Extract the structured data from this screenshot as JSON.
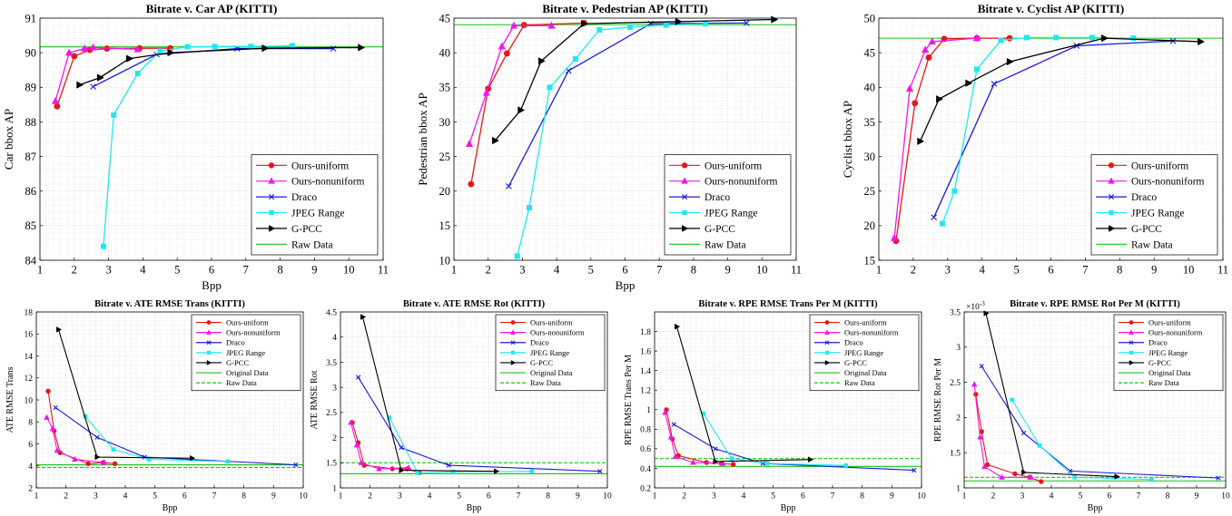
{
  "colors": {
    "ours_uniform": "#e8141a",
    "ours_nonuniform": "#ee17ee",
    "draco": "#1b1bd8",
    "jpeg_range": "#1fe8ee",
    "gpcc": "#000000",
    "green": "#18c418"
  },
  "chart_data": [
    {
      "type": "line",
      "title": "Bitrate v. Car AP (KITTI)",
      "xlabel": "Bpp",
      "ylabel": "Car bbox AP",
      "xlim": [
        1,
        11
      ],
      "ylim": [
        84,
        91
      ],
      "xticks": [
        1,
        2,
        3,
        4,
        5,
        6,
        7,
        8,
        9,
        10,
        11
      ],
      "yticks": [
        84,
        85,
        86,
        87,
        88,
        89,
        90,
        91
      ],
      "grid": true,
      "legend_position": "bottom-right",
      "series": [
        {
          "name": "Ours-uniform",
          "marker": "circle",
          "x": [
            1.5,
            2.0,
            2.45,
            2.95,
            3.9,
            4.8
          ],
          "y": [
            88.45,
            89.9,
            90.08,
            90.12,
            90.13,
            90.13
          ]
        },
        {
          "name": "Ours-nonuniform",
          "marker": "triangle-up",
          "x": [
            1.45,
            1.85,
            2.3,
            2.55,
            3.85
          ],
          "y": [
            88.6,
            90.0,
            90.12,
            90.15,
            90.1
          ]
        },
        {
          "name": "Draco",
          "marker": "x",
          "x": [
            2.55,
            4.4,
            6.75,
            9.55
          ],
          "y": [
            89.02,
            89.95,
            90.12,
            90.12
          ]
        },
        {
          "name": "JPEG Range",
          "marker": "square",
          "x": [
            2.85,
            3.15,
            3.85,
            4.5,
            5.3,
            6.1,
            7.15,
            8.35
          ],
          "y": [
            84.4,
            88.2,
            89.4,
            90.05,
            90.17,
            90.18,
            90.18,
            90.2
          ]
        },
        {
          "name": "G-PCC",
          "marker": "triangle-right",
          "x": [
            2.15,
            2.75,
            3.6,
            4.8,
            7.55,
            10.35
          ],
          "y": [
            89.07,
            89.28,
            89.83,
            90.0,
            90.13,
            90.15
          ]
        }
      ],
      "hlines": [
        {
          "name": "Raw Data",
          "y": 90.17,
          "style": "solid"
        }
      ],
      "legend": [
        "Ours-uniform",
        "Ours-nonuniform",
        "Draco",
        "JPEG Range",
        "G-PCC",
        "Raw Data"
      ]
    },
    {
      "type": "line",
      "title": "Bitrate v. Pedestrian AP (KITTI)",
      "xlabel": "Bpp",
      "ylabel": "Pedestrian bbox AP",
      "xlim": [
        1,
        11
      ],
      "ylim": [
        10,
        45
      ],
      "xticks": [
        1,
        2,
        3,
        4,
        5,
        6,
        7,
        8,
        9,
        10,
        11
      ],
      "yticks": [
        10,
        15,
        20,
        25,
        30,
        35,
        40,
        45
      ],
      "grid": true,
      "legend_position": "bottom-right",
      "series": [
        {
          "name": "Ours-uniform",
          "marker": "circle",
          "x": [
            1.5,
            2.0,
            2.55,
            3.05,
            4.8
          ],
          "y": [
            21.0,
            34.8,
            39.9,
            44.0,
            44.3
          ]
        },
        {
          "name": "Ours-nonuniform",
          "marker": "triangle-up",
          "x": [
            1.45,
            1.95,
            2.4,
            2.75,
            3.85
          ],
          "y": [
            26.8,
            34.2,
            40.9,
            43.9,
            43.9
          ]
        },
        {
          "name": "Draco",
          "marker": "x",
          "x": [
            2.6,
            4.35,
            6.75,
            9.55
          ],
          "y": [
            20.7,
            37.4,
            44.2,
            44.3
          ]
        },
        {
          "name": "JPEG Range",
          "marker": "square",
          "x": [
            2.85,
            3.2,
            3.8,
            4.55,
            5.25,
            6.15,
            7.2,
            8.35
          ],
          "y": [
            10.6,
            17.6,
            35.0,
            39.1,
            43.3,
            43.7,
            44.0,
            44.2
          ]
        },
        {
          "name": "G-PCC",
          "marker": "triangle-right",
          "x": [
            2.2,
            2.95,
            3.55,
            4.8,
            7.55,
            10.35
          ],
          "y": [
            27.3,
            31.7,
            38.8,
            44.2,
            44.5,
            44.8
          ]
        }
      ],
      "hlines": [
        {
          "name": "Raw Data",
          "y": 44.05,
          "style": "solid"
        }
      ],
      "legend": [
        "Ours-uniform",
        "Ours-nonuniform",
        "Draco",
        "JPEG Range",
        "G-PCC",
        "Raw Data"
      ]
    },
    {
      "type": "line",
      "title": "Bitrate v. Cyclist AP (KITTI)",
      "xlabel": "",
      "ylabel": "Cyclist bbox AP",
      "xlim": [
        1,
        11
      ],
      "ylim": [
        15,
        50
      ],
      "xticks": [
        1,
        2,
        3,
        4,
        5,
        6,
        7,
        8,
        9,
        10,
        11
      ],
      "yticks": [
        15,
        20,
        25,
        30,
        35,
        40,
        45,
        50
      ],
      "grid": true,
      "legend_position": "bottom-right",
      "series": [
        {
          "name": "Ours-uniform",
          "marker": "circle",
          "x": [
            1.5,
            2.05,
            2.45,
            2.9,
            3.85,
            4.8
          ],
          "y": [
            17.8,
            37.7,
            44.3,
            47.0,
            47.1,
            47.1
          ]
        },
        {
          "name": "Ours-nonuniform",
          "marker": "triangle-up",
          "x": [
            1.45,
            1.9,
            2.35,
            2.55,
            3.85
          ],
          "y": [
            18.2,
            39.8,
            45.4,
            46.6,
            47.1
          ]
        },
        {
          "name": "Draco",
          "marker": "x",
          "x": [
            2.6,
            4.35,
            6.75,
            9.55
          ],
          "y": [
            21.2,
            40.5,
            46.0,
            46.7
          ]
        },
        {
          "name": "JPEG Range",
          "marker": "square",
          "x": [
            2.85,
            3.2,
            3.85,
            4.55,
            5.3,
            6.15,
            7.2,
            8.4
          ],
          "y": [
            20.3,
            25.0,
            42.6,
            46.8,
            47.2,
            47.2,
            47.2,
            47.1
          ]
        },
        {
          "name": "G-PCC",
          "marker": "triangle-right",
          "x": [
            2.2,
            2.75,
            3.6,
            4.8,
            7.55,
            10.35
          ],
          "y": [
            32.2,
            38.3,
            40.6,
            43.7,
            47.1,
            46.6
          ]
        }
      ],
      "hlines": [
        {
          "name": "Raw Data",
          "y": 47.1,
          "style": "solid"
        }
      ],
      "legend": [
        "Ours-uniform",
        "Ours-nonuniform",
        "Draco",
        "JPEG Range",
        "G-PCC",
        "Raw Data"
      ]
    },
    {
      "type": "line",
      "title": "Bitrate v. ATE RMSE Trans (KITTI)",
      "xlabel": "Bpp",
      "ylabel": "ATE RMSE Trans",
      "xlim": [
        1,
        10
      ],
      "ylim": [
        2,
        18
      ],
      "xticks": [
        1,
        2,
        3,
        4,
        5,
        6,
        7,
        8,
        9,
        10
      ],
      "yticks": [
        2,
        4,
        6,
        8,
        10,
        12,
        14,
        16,
        18
      ],
      "grid": true,
      "legend_position": "top-right",
      "series": [
        {
          "name": "Ours-uniform",
          "marker": "circle",
          "x": [
            1.4,
            1.6,
            1.8,
            2.75,
            3.25,
            3.65
          ],
          "y": [
            10.8,
            7.2,
            5.2,
            4.2,
            4.3,
            4.2
          ]
        },
        {
          "name": "Ours-nonuniform",
          "marker": "triangle-up",
          "x": [
            1.35,
            1.55,
            1.7,
            2.3,
            3.3
          ],
          "y": [
            8.4,
            7.4,
            5.4,
            4.6,
            4.3
          ]
        },
        {
          "name": "Draco",
          "marker": "x",
          "x": [
            1.65,
            3.05,
            4.65,
            9.75
          ],
          "y": [
            9.3,
            6.6,
            4.8,
            4.1
          ]
        },
        {
          "name": "JPEG Range",
          "marker": "square",
          "x": [
            2.65,
            3.6,
            4.8,
            7.45
          ],
          "y": [
            8.5,
            5.5,
            4.6,
            4.4
          ]
        },
        {
          "name": "G-PCC",
          "marker": "triangle-right",
          "x": [
            1.75,
            3.05,
            6.25
          ],
          "y": [
            16.4,
            4.8,
            4.7
          ]
        }
      ],
      "hlines": [
        {
          "name": "Original Data",
          "y": 4.1,
          "style": "solid"
        },
        {
          "name": "Raw Data",
          "y": 3.85,
          "style": "dashed"
        }
      ],
      "legend": [
        "Ours-uniform",
        "Ours-nonuniform",
        "Draco",
        "JPEG Range",
        "G-PCC",
        "Original Data",
        "Raw Data"
      ]
    },
    {
      "type": "line",
      "title": "Bitrate v. ATE RMSE Rot (KITTI)",
      "xlabel": "Bpp",
      "ylabel": "ATE RMSE Rot",
      "xlim": [
        1,
        10
      ],
      "ylim": [
        1,
        4.5
      ],
      "xticks": [
        1,
        2,
        3,
        4,
        5,
        6,
        7,
        8,
        9,
        10
      ],
      "yticks": [
        1,
        1.5,
        2,
        2.5,
        3,
        3.5,
        4,
        4.5
      ],
      "grid": true,
      "legend_position": "top-right",
      "series": [
        {
          "name": "Ours-uniform",
          "marker": "circle",
          "x": [
            1.4,
            1.6,
            1.8,
            2.75,
            3.25,
            3.65
          ],
          "y": [
            2.3,
            1.9,
            1.45,
            1.38,
            1.38,
            1.3
          ]
        },
        {
          "name": "Ours-nonuniform",
          "marker": "triangle-up",
          "x": [
            1.35,
            1.55,
            1.7,
            2.3,
            3.3
          ],
          "y": [
            2.3,
            1.85,
            1.5,
            1.38,
            1.4
          ]
        },
        {
          "name": "Draco",
          "marker": "x",
          "x": [
            1.6,
            3.05,
            4.65,
            9.75
          ],
          "y": [
            3.2,
            1.8,
            1.45,
            1.33
          ]
        },
        {
          "name": "JPEG Range",
          "marker": "square",
          "x": [
            2.65,
            3.6,
            4.8,
            7.45
          ],
          "y": [
            2.4,
            1.3,
            1.32,
            1.33
          ]
        },
        {
          "name": "G-PCC",
          "marker": "triangle-right",
          "x": [
            1.75,
            3.05,
            6.25
          ],
          "y": [
            4.4,
            1.35,
            1.33
          ]
        }
      ],
      "hlines": [
        {
          "name": "Original Data",
          "y": 1.28,
          "style": "solid"
        },
        {
          "name": "Raw Data",
          "y": 1.5,
          "style": "dashed"
        }
      ],
      "legend": [
        "Ours-uniform",
        "Ours-nonuniform",
        "Draco",
        "JPEG Range",
        "G-PCC",
        "Original Data",
        "Raw Data"
      ]
    },
    {
      "type": "line",
      "title": "Bitrate v. RPE RMSE Trans Per M (KITTI)",
      "xlabel": "Bpp",
      "ylabel": "RPE RMSE Trans Per M",
      "xlim": [
        1,
        10
      ],
      "ylim": [
        0.2,
        2.0
      ],
      "xticks": [
        1,
        2,
        3,
        4,
        5,
        6,
        7,
        8,
        9,
        10
      ],
      "yticks": [
        0.2,
        0.4,
        0.6,
        0.8,
        1,
        1.2,
        1.4,
        1.6,
        1.8
      ],
      "grid": true,
      "legend_position": "top-right",
      "series": [
        {
          "name": "Ours-uniform",
          "marker": "circle",
          "x": [
            1.4,
            1.6,
            1.8,
            2.75,
            3.25,
            3.65
          ],
          "y": [
            1.0,
            0.7,
            0.53,
            0.46,
            0.45,
            0.44
          ]
        },
        {
          "name": "Ours-nonuniform",
          "marker": "triangle-up",
          "x": [
            1.35,
            1.55,
            1.7,
            2.3,
            3.3
          ],
          "y": [
            0.97,
            0.72,
            0.52,
            0.46,
            0.45
          ]
        },
        {
          "name": "Draco",
          "marker": "x",
          "x": [
            1.65,
            3.05,
            4.65,
            9.75
          ],
          "y": [
            0.85,
            0.6,
            0.45,
            0.38
          ]
        },
        {
          "name": "JPEG Range",
          "marker": "square",
          "x": [
            2.65,
            3.6,
            4.8,
            7.45
          ],
          "y": [
            0.96,
            0.5,
            0.45,
            0.43
          ]
        },
        {
          "name": "G-PCC",
          "marker": "triangle-right",
          "x": [
            1.75,
            3.05,
            6.25
          ],
          "y": [
            1.85,
            0.47,
            0.49
          ]
        }
      ],
      "hlines": [
        {
          "name": "Original Data",
          "y": 0.42,
          "style": "solid"
        },
        {
          "name": "Raw Data",
          "y": 0.5,
          "style": "dashed"
        }
      ],
      "legend": [
        "Ours-uniform",
        "Ours-nonuniform",
        "Draco",
        "JPEG Range",
        "G-PCC",
        "Original Data",
        "Raw Data"
      ]
    },
    {
      "type": "line",
      "title": "Bitrate v. RPE RMSE Rot Per M (KITTI)",
      "xlabel": "Bpp",
      "ylabel": "RPE RMSE Rot Per M",
      "exponent_label": "×10",
      "exponent": "-3",
      "xlim": [
        1,
        10
      ],
      "ylim": [
        1,
        3.5
      ],
      "xticks": [
        1,
        2,
        3,
        4,
        5,
        6,
        7,
        8,
        9,
        10
      ],
      "yticks": [
        1,
        1.5,
        2,
        2.5,
        3,
        3.5
      ],
      "grid": true,
      "legend_position": "top-right",
      "series": [
        {
          "name": "Ours-uniform",
          "marker": "circle",
          "x": [
            1.4,
            1.6,
            1.8,
            2.75,
            3.25,
            3.65
          ],
          "y": [
            2.33,
            1.8,
            1.33,
            1.2,
            1.15,
            1.09
          ]
        },
        {
          "name": "Ours-nonuniform",
          "marker": "triangle-up",
          "x": [
            1.35,
            1.55,
            1.7,
            2.3,
            3.3
          ],
          "y": [
            2.47,
            1.72,
            1.3,
            1.15,
            1.15
          ]
        },
        {
          "name": "Draco",
          "marker": "x",
          "x": [
            1.6,
            3.05,
            4.65,
            9.75
          ],
          "y": [
            2.73,
            1.78,
            1.24,
            1.14
          ]
        },
        {
          "name": "JPEG Range",
          "marker": "square",
          "x": [
            2.65,
            3.6,
            4.8,
            7.45
          ],
          "y": [
            2.25,
            1.6,
            1.15,
            1.12
          ]
        },
        {
          "name": "G-PCC",
          "marker": "triangle-right",
          "x": [
            1.75,
            3.05,
            6.25
          ],
          "y": [
            3.48,
            1.22,
            1.16
          ]
        }
      ],
      "hlines": [
        {
          "name": "Original Data",
          "y": 1.1,
          "style": "solid"
        },
        {
          "name": "Raw Data",
          "y": 1.15,
          "style": "dashed"
        }
      ],
      "legend": [
        "Ours-uniform",
        "Ours-nonuniform",
        "Draco",
        "JPEG Range",
        "G-PCC",
        "Original Data",
        "Raw Data"
      ]
    }
  ]
}
